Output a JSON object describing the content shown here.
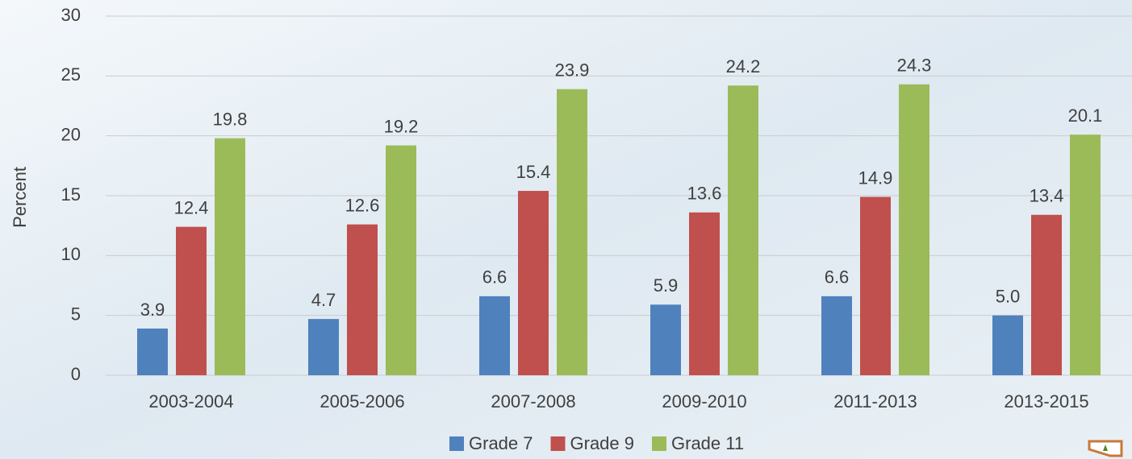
{
  "chart_data": {
    "type": "bar",
    "y_label": "Percent",
    "categories": [
      "2003-2004",
      "2005-2006",
      "2007-2008",
      "2009-2010",
      "2011-2013",
      "2013-2015"
    ],
    "series": [
      {
        "name": "Grade 7",
        "color": "#4f81bd",
        "values": [
          3.9,
          4.7,
          6.6,
          5.9,
          6.6,
          5.0
        ],
        "value_labels": [
          "3.9",
          "4.7",
          "6.6",
          "5.9",
          "6.6",
          "5.0"
        ]
      },
      {
        "name": "Grade 9",
        "color": "#c0504d",
        "values": [
          12.4,
          12.6,
          15.4,
          13.6,
          14.9,
          13.4
        ],
        "value_labels": [
          "12.4",
          "12.6",
          "15.4",
          "13.6",
          "14.9",
          "13.4"
        ]
      },
      {
        "name": "Grade 11",
        "color": "#9bbb59",
        "values": [
          19.8,
          19.2,
          23.9,
          24.2,
          24.3,
          20.1
        ],
        "value_labels": [
          "19.8",
          "19.2",
          "23.9",
          "24.2",
          "24.3",
          "20.1"
        ]
      }
    ],
    "ylim": [
      0,
      30
    ],
    "yticks": [
      0,
      5,
      10,
      15,
      20,
      25,
      30
    ],
    "grid": true,
    "legend": "bottom"
  }
}
